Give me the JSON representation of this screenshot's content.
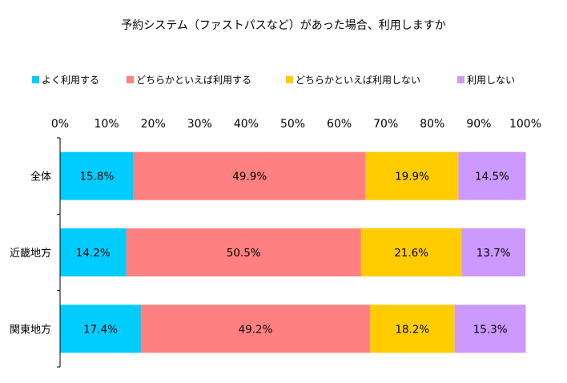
{
  "chart_data": {
    "type": "bar",
    "orientation": "horizontal",
    "stacked": true,
    "title": "予約システム（ファストパスなど）があった場合、利用しますか",
    "categories": [
      "全体",
      "近畿地方",
      "関東地方"
    ],
    "series": [
      {
        "name": "よく利用する",
        "color": "#00ccff",
        "values": [
          15.8,
          14.2,
          17.4
        ],
        "labels": [
          "15.8%",
          "14.2%",
          "17.4%"
        ]
      },
      {
        "name": "どちらかといえば利用する",
        "color": "#ff8080",
        "values": [
          49.9,
          50.5,
          49.2
        ],
        "labels": [
          "49.9%",
          "50.5%",
          "49.2%"
        ]
      },
      {
        "name": "どちらかといえば利用しない",
        "color": "#ffcc00",
        "values": [
          19.9,
          21.6,
          18.2
        ],
        "labels": [
          "19.9%",
          "21.6%",
          "18.2%"
        ]
      },
      {
        "name": "利用しない",
        "color": "#cc99ff",
        "values": [
          14.5,
          13.7,
          15.3
        ],
        "labels": [
          "14.5%",
          "13.7%",
          "15.3%"
        ]
      }
    ],
    "xlim": [
      0,
      100
    ],
    "x_ticks": [
      "0%",
      "10%",
      "20%",
      "30%",
      "40%",
      "50%",
      "60%",
      "70%",
      "80%",
      "90%",
      "100%"
    ],
    "x_axis_position": "top",
    "grid": false,
    "legend": "top"
  }
}
